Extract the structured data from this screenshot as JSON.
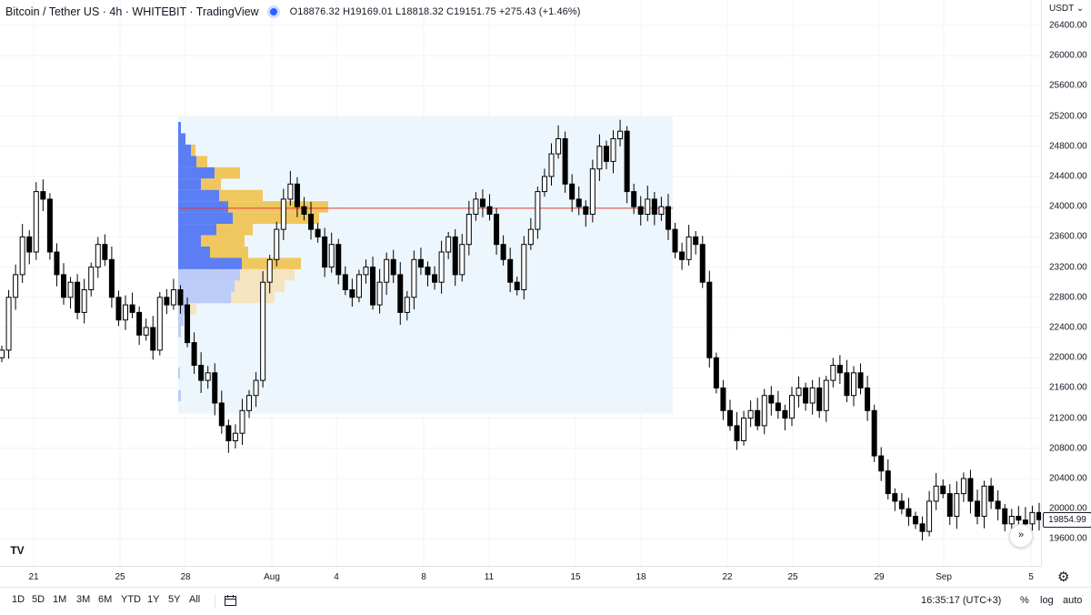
{
  "legend": {
    "title": "Bitcoin / Tether US · 4h · WHITEBIT · TradingView",
    "ohlc": "O18876.32 H19169.01 L18818.32 C19151.75 +275.43 (+1.46%)"
  },
  "y_axis": {
    "currency": "USDT",
    "ticks": [
      "26400.00",
      "26000.00",
      "25600.00",
      "25200.00",
      "24800.00",
      "24400.00",
      "24000.00",
      "23600.00",
      "23200.00",
      "22800.00",
      "22400.00",
      "22000.00",
      "21600.00",
      "21200.00",
      "20800.00",
      "20400.00",
      "20000.00",
      "19600.00"
    ],
    "last_price": "19854.99"
  },
  "x_axis": {
    "ticks": [
      "21",
      "25",
      "28",
      "Aug",
      "4",
      "8",
      "11",
      "15",
      "18",
      "22",
      "25",
      "29",
      "Sep",
      "5"
    ]
  },
  "bottom_bar": {
    "ranges": [
      "1D",
      "5D",
      "1M",
      "3M",
      "6M",
      "YTD",
      "1Y",
      "5Y",
      "All"
    ],
    "time": "16:35:17 (UTC+3)",
    "percent": "%",
    "log": "log",
    "auto": "auto"
  },
  "colors": {
    "up": "#ffffff",
    "down": "#000000",
    "volume_profile_up": "#5b7ef5",
    "volume_profile_down": "#f0c75e",
    "range_fill": "#eaf4fb",
    "poc_line": "#e53935"
  },
  "chart_data": {
    "type": "candlestick",
    "symbol": "Bitcoin / Tether US",
    "interval": "4h",
    "y_range": [
      19350,
      26600
    ],
    "poc_price": 23980,
    "range_box_price": [
      21260,
      25190
    ],
    "closes": [
      22100,
      22800,
      23100,
      23600,
      23400,
      24200,
      24100,
      23400,
      23100,
      22800,
      23000,
      22600,
      22900,
      23200,
      23500,
      23300,
      22800,
      22500,
      22700,
      22600,
      22300,
      22400,
      22100,
      22800,
      22700,
      22900,
      22700,
      22200,
      21900,
      21700,
      21800,
      21400,
      21100,
      20900,
      21000,
      21300,
      21500,
      21700,
      23000,
      23300,
      23700,
      24100,
      24300,
      24000,
      23900,
      23700,
      23600,
      23200,
      23500,
      23100,
      22900,
      22800,
      23100,
      23200,
      22700,
      23000,
      23300,
      23100,
      22600,
      22800,
      23300,
      23200,
      23100,
      23000,
      23400,
      23600,
      23100,
      23500,
      23900,
      24100,
      24000,
      23900,
      23500,
      23300,
      23000,
      22900,
      23500,
      23700,
      24200,
      24400,
      24700,
      24900,
      24300,
      24100,
      24000,
      23900,
      24500,
      24800,
      24600,
      24900,
      25000,
      24200,
      24000,
      23900,
      24100,
      23900,
      24000,
      23700,
      23400,
      23300,
      23600,
      23500,
      23000,
      22000,
      21600,
      21300,
      21100,
      20900,
      21200,
      21300,
      21100,
      21500,
      21400,
      21300,
      21200,
      21500,
      21600,
      21400,
      21600,
      21300,
      21700,
      21900,
      21800,
      21500,
      21800,
      21600,
      21300,
      20700,
      20500,
      20200,
      20100,
      20000,
      19900,
      19800,
      19700,
      20100,
      20300,
      20200,
      19900,
      20200,
      20400,
      20100,
      19900,
      20300,
      20100,
      20000,
      19800,
      19900,
      19850,
      19800,
      19950,
      19855
    ],
    "x_ticks": [
      "21",
      "25",
      "28",
      "Aug",
      "4",
      "8",
      "11",
      "15",
      "18",
      "22",
      "25",
      "29",
      "Sep",
      "5"
    ]
  }
}
